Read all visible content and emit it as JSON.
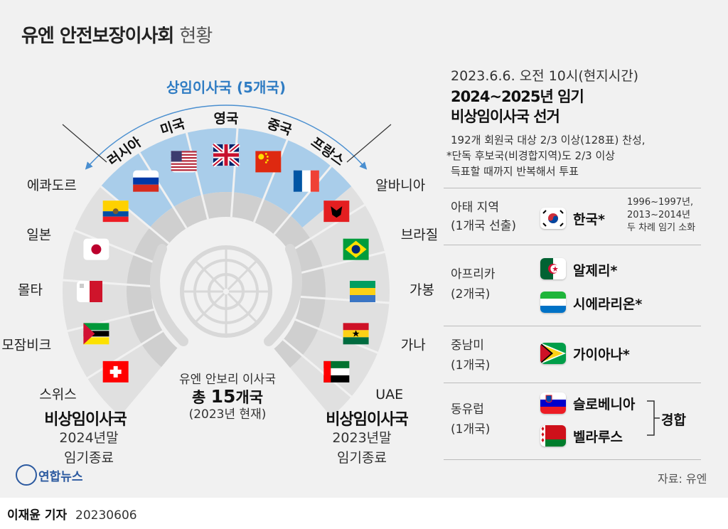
{
  "title": {
    "main": "유엔 안전보장이사회",
    "sub": "현황"
  },
  "permanent": {
    "label": "상임이사국 (5개국)",
    "members": [
      "러시아",
      "미국",
      "영국",
      "중국",
      "프랑스"
    ]
  },
  "left_members": [
    "에콰도르",
    "일본",
    "몰타",
    "모잠비크",
    "스위스"
  ],
  "right_members": [
    "알바니아",
    "브라질",
    "가봉",
    "가나",
    "UAE"
  ],
  "left_group": {
    "title": "비상임이사국",
    "line1": "2024년말",
    "line2": "임기종료"
  },
  "right_group": {
    "title": "비상임이사국",
    "line1": "2023년말",
    "line2": "임기종료"
  },
  "center": {
    "line1": "유엔 안보리 이사국",
    "line2_prefix": "총",
    "line2_num": "15",
    "line2_suffix": "개국",
    "line3": "(2023년 현재)"
  },
  "election": {
    "date": "2023.6.6. 오전 10시(현지시간)",
    "title1": "2024~2025년 임기",
    "title2": "비상임이사국 선거",
    "note1": "192개 회원국 대상 2/3 이상(128표) 찬성,",
    "note2": "*단독 후보국(비경합지역)도 2/3 이상",
    "note3": "득표할 때까지 반복해서 투표"
  },
  "regions": [
    {
      "name": "아태 지역",
      "count": "(1개국 선출)",
      "candidates": [
        "한국*"
      ],
      "note": [
        "1996~1997년,",
        "2013~2014년",
        "두 차례 임기 소화"
      ]
    },
    {
      "name": "아프리카",
      "count": "(2개국)",
      "candidates": [
        "알제리*",
        "시에라리온*"
      ]
    },
    {
      "name": "중남미",
      "count": "(1개국)",
      "candidates": [
        "가이아나*"
      ]
    },
    {
      "name": "동유럽",
      "count": "(1개국)",
      "candidates": [
        "슬로베니아",
        "벨라루스"
      ],
      "tag": "경합"
    }
  ],
  "source": "자료: 유엔",
  "logo": "연합뉴스",
  "footer": {
    "reporter": "이재윤 기자",
    "date": "20230606"
  },
  "colors": {
    "permanent_ring": "#a9cdea",
    "permanent_dark": "#4a8fd0",
    "ring_light": "#e0e0e0",
    "ring_mid": "#cfcfcf",
    "emblem": "#d8d8d8"
  }
}
